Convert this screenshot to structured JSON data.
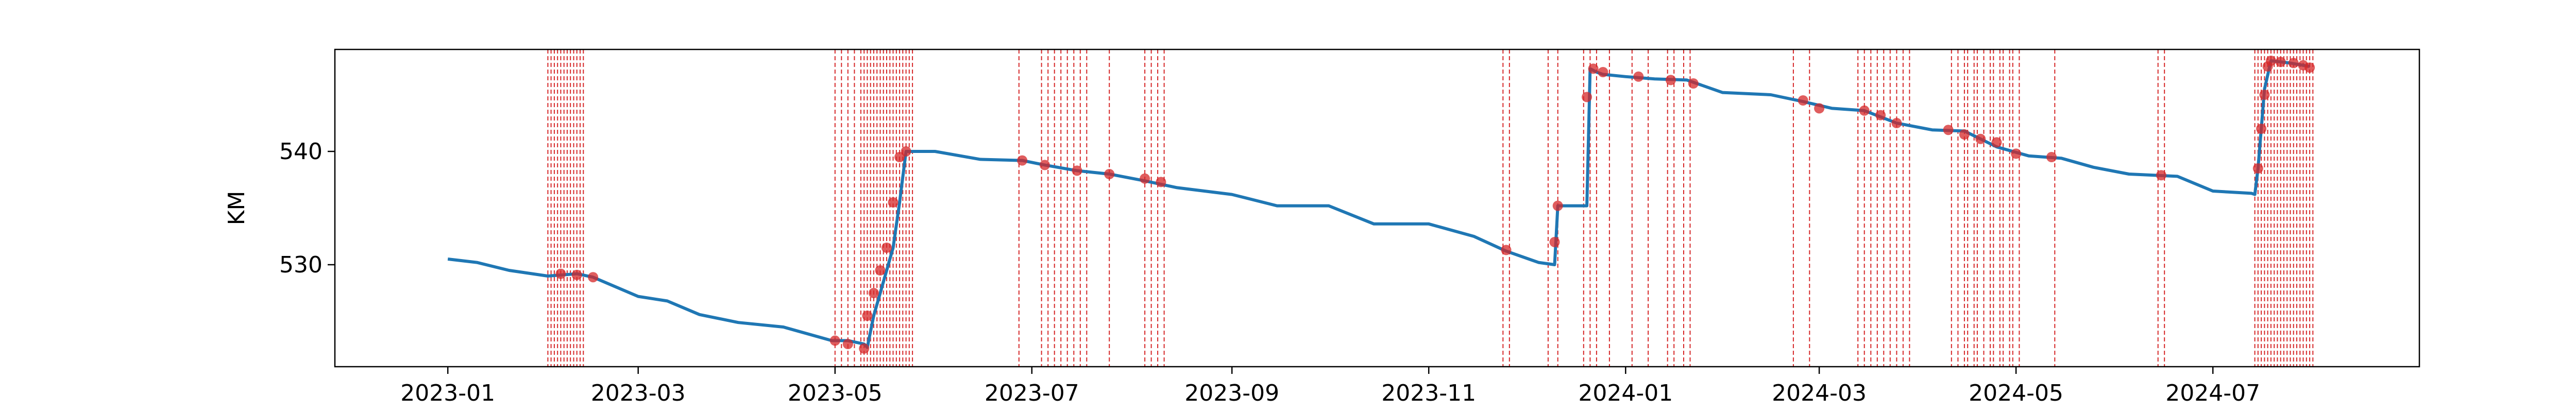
{
  "chart_data": {
    "type": "line",
    "title": "",
    "xlabel": "",
    "ylabel": "KM",
    "x_axis_type": "date",
    "xlim": [
      "2022-11-27",
      "2024-09-03"
    ],
    "ylim": [
      521,
      549
    ],
    "x_ticks": [
      "2023-01-01",
      "2023-03-01",
      "2023-05-01",
      "2023-07-01",
      "2023-09-01",
      "2023-11-01",
      "2024-01-01",
      "2024-03-01",
      "2024-05-01",
      "2024-07-01"
    ],
    "x_tick_labels": [
      "2023-01",
      "2023-03",
      "2023-05",
      "2023-07",
      "2023-09",
      "2023-11",
      "2024-01",
      "2024-03",
      "2024-05",
      "2024-07"
    ],
    "y_ticks": [
      530,
      540
    ],
    "y_tick_labels": [
      "530",
      "540"
    ],
    "grid": false,
    "colors": {
      "line": "#1f77b4",
      "events": "#d62728"
    },
    "series": [
      {
        "x": [
          "2023-01-01",
          "2023-01-10",
          "2023-01-20",
          "2023-02-01",
          "2023-02-10",
          "2023-02-15",
          "2023-03-01",
          "2023-03-10",
          "2023-03-20",
          "2023-04-01",
          "2023-04-15",
          "2023-04-30",
          "2023-05-05",
          "2023-05-10",
          "2023-05-11",
          "2023-05-13",
          "2023-05-15",
          "2023-05-17",
          "2023-05-19",
          "2023-05-21",
          "2023-05-23",
          "2023-06-01",
          "2023-06-15",
          "2023-06-28",
          "2023-07-05",
          "2023-07-15",
          "2023-07-25",
          "2023-08-05",
          "2023-08-15",
          "2023-09-01",
          "2023-09-15",
          "2023-10-01",
          "2023-10-15",
          "2023-11-01",
          "2023-11-15",
          "2023-11-25",
          "2023-12-05",
          "2023-12-10",
          "2023-12-11",
          "2023-12-20",
          "2023-12-21",
          "2023-12-23",
          "2023-12-25",
          "2024-01-01",
          "2024-01-10",
          "2024-01-20",
          "2024-01-31",
          "2024-02-15",
          "2024-02-25",
          "2024-03-05",
          "2024-03-15",
          "2024-03-25",
          "2024-04-05",
          "2024-04-15",
          "2024-04-25",
          "2024-05-05",
          "2024-05-15",
          "2024-05-25",
          "2024-06-05",
          "2024-06-20",
          "2024-07-01",
          "2024-07-13",
          "2024-07-14",
          "2024-07-15",
          "2024-07-16",
          "2024-07-17",
          "2024-07-19",
          "2024-07-25",
          "2024-07-31"
        ],
        "values": [
          530.5,
          530.2,
          529.5,
          529.0,
          529.2,
          528.9,
          527.2,
          526.8,
          525.6,
          524.9,
          524.5,
          523.3,
          523.3,
          523.0,
          522.7,
          525.5,
          527.5,
          529.5,
          531.5,
          535.5,
          540.0,
          540.0,
          539.3,
          539.2,
          538.8,
          538.3,
          538.0,
          537.4,
          536.8,
          536.2,
          535.2,
          535.2,
          533.6,
          533.6,
          532.5,
          531.2,
          530.2,
          530.0,
          535.2,
          535.2,
          547.3,
          547.0,
          546.8,
          546.6,
          546.4,
          546.3,
          545.2,
          545.0,
          544.4,
          543.8,
          543.6,
          542.5,
          541.9,
          541.8,
          540.4,
          539.6,
          539.4,
          538.6,
          538.0,
          537.8,
          536.5,
          536.3,
          536.2,
          538.5,
          542.0,
          545.5,
          548.0,
          547.8,
          547.5
        ]
      }
    ],
    "markers": {
      "x": [
        "2023-02-05",
        "2023-02-10",
        "2023-02-15",
        "2023-05-01",
        "2023-05-05",
        "2023-05-10",
        "2023-05-11",
        "2023-05-13",
        "2023-05-15",
        "2023-05-17",
        "2023-05-19",
        "2023-05-21",
        "2023-05-23",
        "2023-06-28",
        "2023-07-05",
        "2023-07-15",
        "2023-07-25",
        "2023-08-05",
        "2023-08-10",
        "2023-11-25",
        "2023-12-10",
        "2023-12-11",
        "2023-12-20",
        "2023-12-22",
        "2023-12-25",
        "2024-01-05",
        "2024-01-15",
        "2024-01-22",
        "2024-02-25",
        "2024-03-01",
        "2024-03-15",
        "2024-03-20",
        "2024-03-25",
        "2024-04-10",
        "2024-04-15",
        "2024-04-20",
        "2024-04-25",
        "2024-05-01",
        "2024-05-12",
        "2024-06-15",
        "2024-07-15",
        "2024-07-16",
        "2024-07-17",
        "2024-07-18",
        "2024-07-19",
        "2024-07-22",
        "2024-07-26",
        "2024-07-29",
        "2024-07-31"
      ],
      "values": [
        529.2,
        529.1,
        528.9,
        523.3,
        523.0,
        522.6,
        525.5,
        527.5,
        529.5,
        531.5,
        535.5,
        539.5,
        540.0,
        539.2,
        538.8,
        538.3,
        538.0,
        537.6,
        537.3,
        531.3,
        532.0,
        535.2,
        544.8,
        547.3,
        547.0,
        546.6,
        546.3,
        546.0,
        544.5,
        543.8,
        543.6,
        543.2,
        542.5,
        541.9,
        541.5,
        541.1,
        540.8,
        539.8,
        539.5,
        537.9,
        538.5,
        542.0,
        545.0,
        547.5,
        548.0,
        547.9,
        547.8,
        547.6,
        547.4
      ]
    },
    "event_lines": [
      "2023-02-01",
      "2023-02-02",
      "2023-02-03",
      "2023-02-04",
      "2023-02-05",
      "2023-02-06",
      "2023-02-07",
      "2023-02-08",
      "2023-02-09",
      "2023-02-10",
      "2023-02-11",
      "2023-02-12",
      "2023-05-01",
      "2023-05-03",
      "2023-05-05",
      "2023-05-07",
      "2023-05-09",
      "2023-05-10",
      "2023-05-11",
      "2023-05-12",
      "2023-05-13",
      "2023-05-14",
      "2023-05-15",
      "2023-05-16",
      "2023-05-17",
      "2023-05-18",
      "2023-05-19",
      "2023-05-20",
      "2023-05-21",
      "2023-05-22",
      "2023-05-23",
      "2023-05-24",
      "2023-05-25",
      "2023-06-27",
      "2023-07-04",
      "2023-07-06",
      "2023-07-08",
      "2023-07-10",
      "2023-07-12",
      "2023-07-14",
      "2023-07-16",
      "2023-07-18",
      "2023-07-25",
      "2023-08-05",
      "2023-08-07",
      "2023-08-09",
      "2023-08-11",
      "2023-11-24",
      "2023-11-26",
      "2023-12-08",
      "2023-12-11",
      "2023-12-19",
      "2023-12-21",
      "2023-12-23",
      "2023-12-27",
      "2024-01-03",
      "2024-01-08",
      "2024-01-14",
      "2024-01-16",
      "2024-01-19",
      "2024-01-21",
      "2024-02-22",
      "2024-02-27",
      "2024-03-13",
      "2024-03-15",
      "2024-03-17",
      "2024-03-19",
      "2024-03-21",
      "2024-03-23",
      "2024-03-25",
      "2024-03-27",
      "2024-03-29",
      "2024-04-11",
      "2024-04-13",
      "2024-04-15",
      "2024-04-16",
      "2024-04-18",
      "2024-04-19",
      "2024-04-21",
      "2024-04-23",
      "2024-04-24",
      "2024-04-26",
      "2024-04-27",
      "2024-04-29",
      "2024-04-30",
      "2024-05-02",
      "2024-05-13",
      "2024-06-14",
      "2024-06-16",
      "2024-07-14",
      "2024-07-15",
      "2024-07-16",
      "2024-07-17",
      "2024-07-18",
      "2024-07-19",
      "2024-07-20",
      "2024-07-21",
      "2024-07-22",
      "2024-07-23",
      "2024-07-24",
      "2024-07-25",
      "2024-07-26",
      "2024-07-27",
      "2024-07-28",
      "2024-07-29",
      "2024-07-30",
      "2024-07-31",
      "2024-08-01"
    ]
  }
}
